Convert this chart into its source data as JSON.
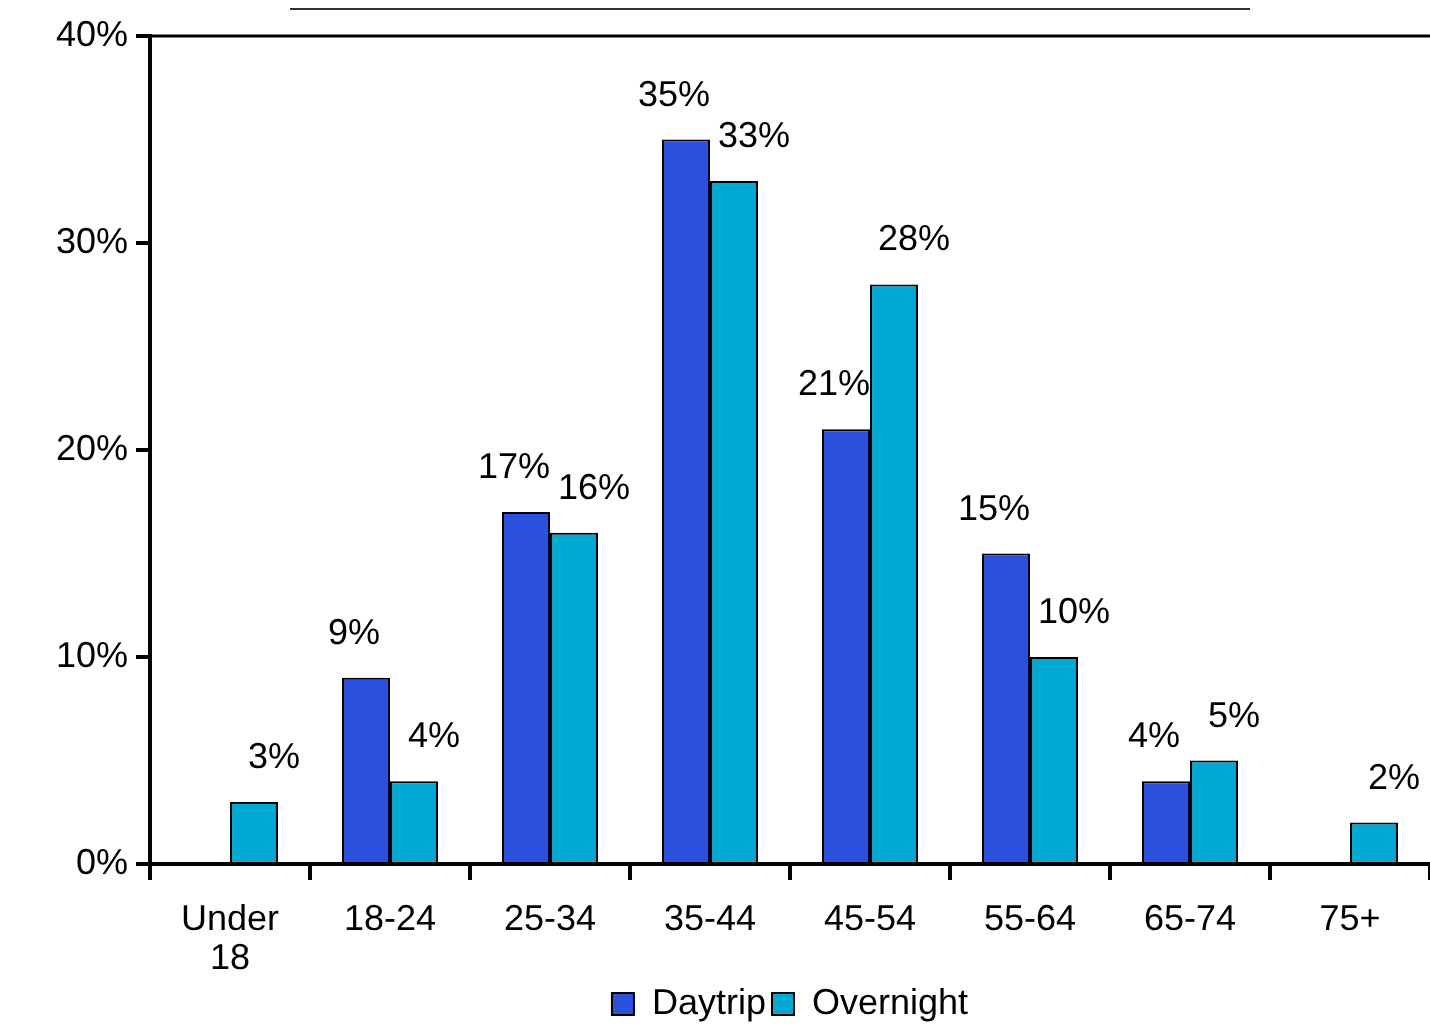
{
  "chart_data": {
    "type": "bar",
    "categories": [
      "Under 18",
      "18-24",
      "25-34",
      "35-44",
      "45-54",
      "55-64",
      "65-74",
      "75+"
    ],
    "series": [
      {
        "name": "Daytrip",
        "color": "#2b50dd",
        "values": [
          null,
          9,
          17,
          35,
          21,
          15,
          4,
          null
        ],
        "value_labels": [
          null,
          "9%",
          "17%",
          "35%",
          "21%",
          "15%",
          "4%",
          null
        ]
      },
      {
        "name": "Overnight",
        "color": "#00aad4",
        "values": [
          3,
          4,
          16,
          33,
          28,
          10,
          5,
          2
        ],
        "value_labels": [
          "3%",
          "4%",
          "16%",
          "33%",
          "28%",
          "10%",
          "5%",
          "2%"
        ]
      }
    ],
    "ylim": [
      0,
      40
    ],
    "yticks": [
      {
        "value": 0,
        "label": "0%"
      },
      {
        "value": 10,
        "label": "10%"
      },
      {
        "value": 20,
        "label": "20%"
      },
      {
        "value": 30,
        "label": "30%"
      },
      {
        "value": 40,
        "label": "40%"
      }
    ],
    "grid": false,
    "legend": "bottom"
  }
}
